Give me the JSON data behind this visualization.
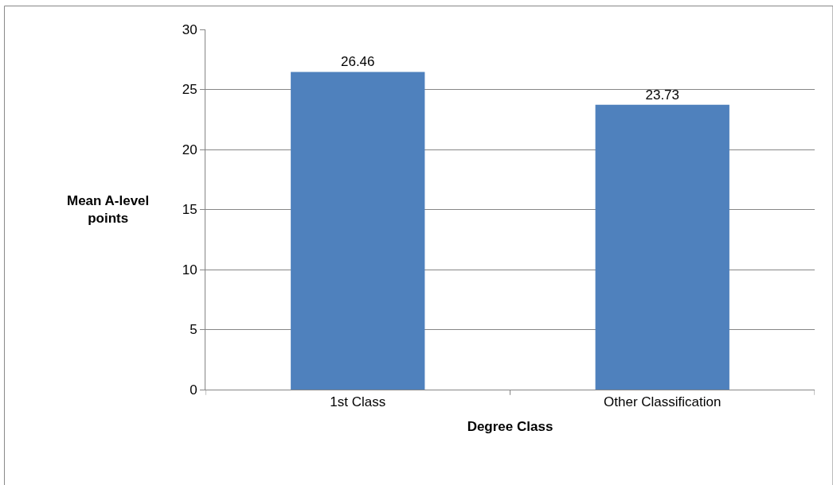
{
  "chart_data": {
    "type": "bar",
    "xlabel": "Degree Class",
    "ylabel": "Mean A-level points",
    "categories": [
      "1st Class",
      "Other Classification"
    ],
    "values": [
      26.46,
      23.73
    ],
    "color": "#4f81bd",
    "ylim": [
      0,
      30
    ],
    "yticks": [
      0,
      5,
      10,
      15,
      20,
      25,
      30
    ],
    "grid": "y",
    "data_labels": true
  }
}
